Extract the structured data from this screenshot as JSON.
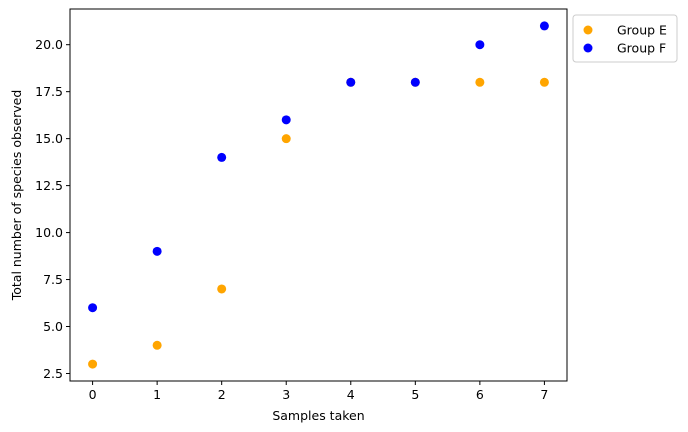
{
  "chart_data": {
    "type": "scatter",
    "title": "",
    "xlabel": "Samples taken",
    "ylabel": "Total number of species observed",
    "xlim": [
      -0.35,
      7.35
    ],
    "ylim": [
      2.1,
      21.9
    ],
    "xticks": [
      0,
      1,
      2,
      3,
      4,
      5,
      6,
      7
    ],
    "yticks": [
      2.5,
      5.0,
      7.5,
      10.0,
      12.5,
      15.0,
      17.5,
      20.0
    ],
    "ytick_labels": [
      "2.5",
      "5.0",
      "7.5",
      "10.0",
      "12.5",
      "15.0",
      "17.5",
      "20.0"
    ],
    "grid": false,
    "legend_position": "outside-top-right",
    "series": [
      {
        "name": "Group E",
        "color": "#ffa500",
        "x": [
          0,
          1,
          2,
          3,
          4,
          5,
          6,
          7
        ],
        "y": [
          3,
          4,
          7,
          15,
          18,
          18,
          18,
          18
        ]
      },
      {
        "name": "Group F",
        "color": "#0000ff",
        "x": [
          0,
          1,
          2,
          3,
          4,
          5,
          6,
          7
        ],
        "y": [
          6,
          9,
          14,
          16,
          18,
          18,
          20,
          21
        ]
      }
    ]
  }
}
